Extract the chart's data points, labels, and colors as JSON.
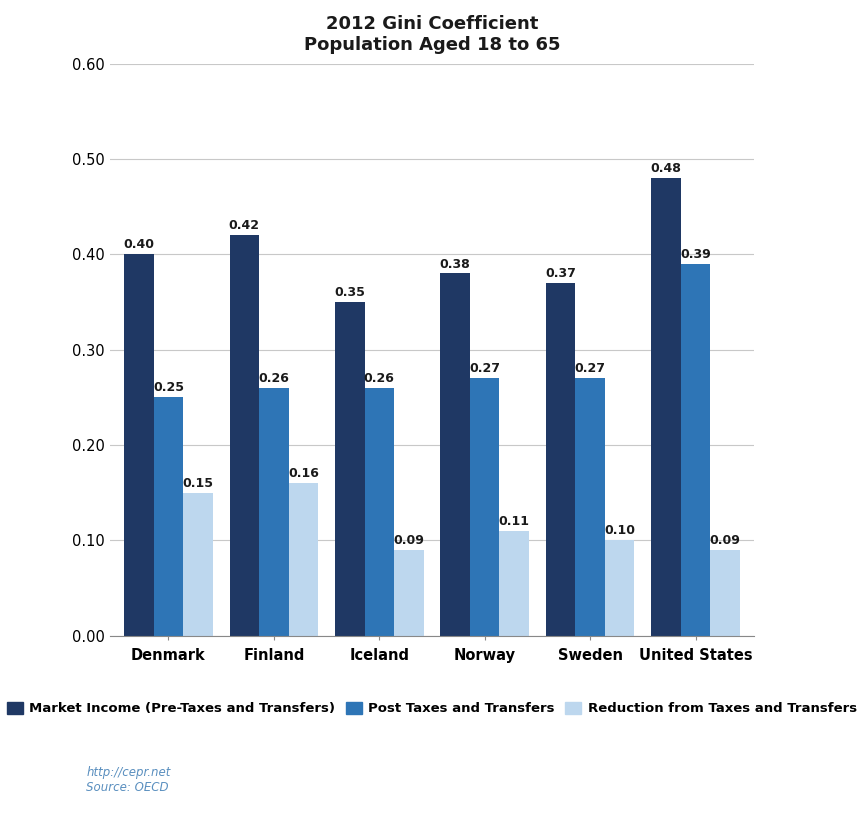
{
  "title": "2012 Gini Coefficient\nPopulation Aged 18 to 65",
  "categories": [
    "Denmark",
    "Finland",
    "Iceland",
    "Norway",
    "Sweden",
    "United States"
  ],
  "series": {
    "Market Income (Pre-Taxes and Transfers)": [
      0.4,
      0.42,
      0.35,
      0.38,
      0.37,
      0.48
    ],
    "Post Taxes and Transfers": [
      0.25,
      0.26,
      0.26,
      0.27,
      0.27,
      0.39
    ],
    "Reduction from Taxes and Transfers": [
      0.15,
      0.16,
      0.09,
      0.11,
      0.1,
      0.09
    ]
  },
  "series_colors": {
    "Market Income (Pre-Taxes and Transfers)": "#1F3864",
    "Post Taxes and Transfers": "#2E75B6",
    "Reduction from Taxes and Transfers": "#BDD7EE"
  },
  "ylim": [
    0.0,
    0.6
  ],
  "yticks": [
    0.0,
    0.1,
    0.2,
    0.3,
    0.4,
    0.5,
    0.6
  ],
  "footnote": "http://cepr.net\nSource: OECD",
  "title_fontsize": 13,
  "legend_fontsize": 9.5,
  "tick_fontsize": 10.5,
  "annotation_fontsize": 9,
  "bar_width": 0.28,
  "background_color": "#FFFFFF",
  "grid_color": "#C8C8C8"
}
